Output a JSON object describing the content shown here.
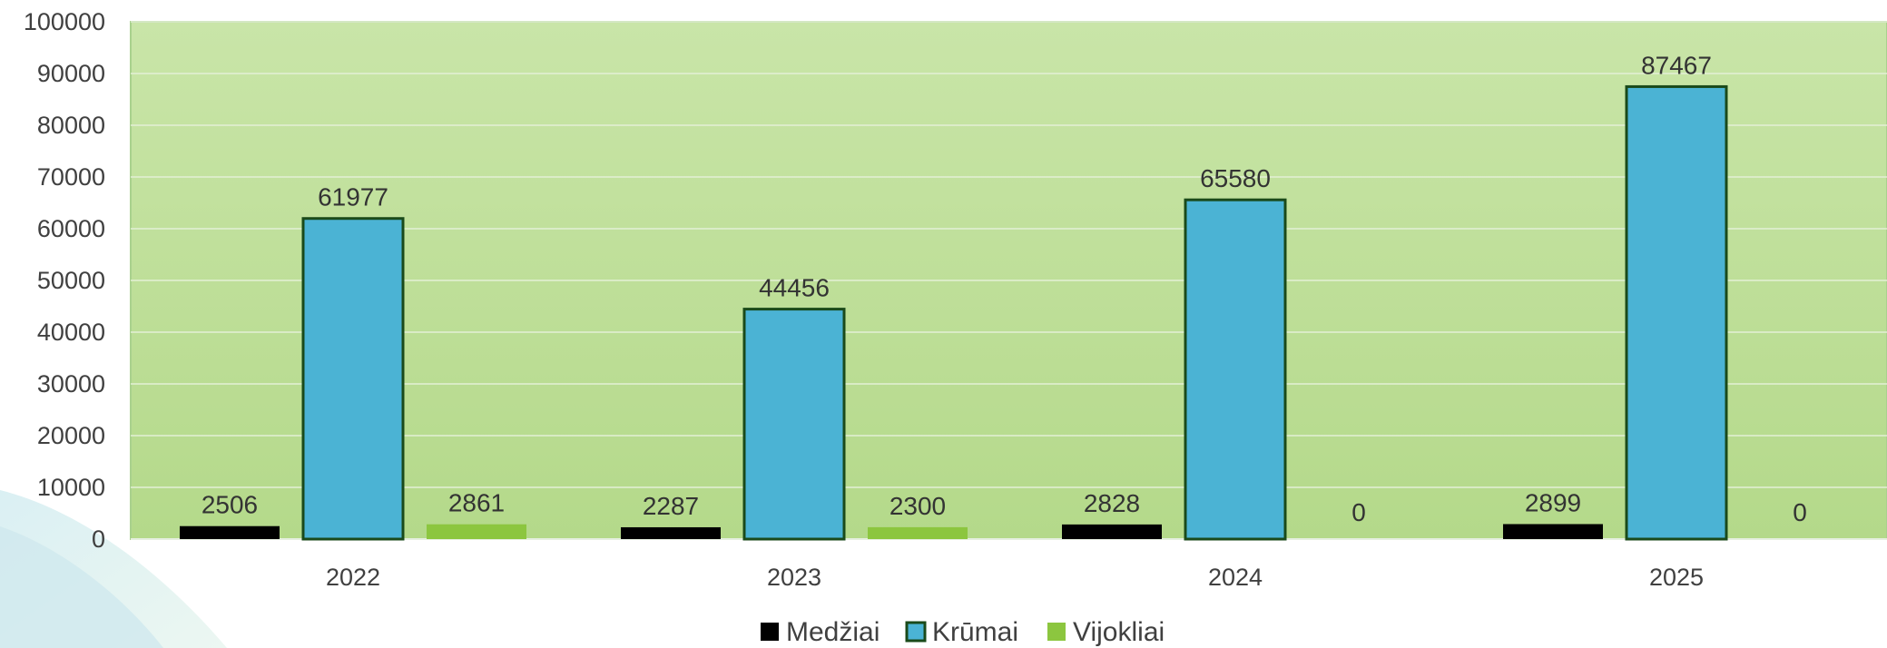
{
  "chart_data": {
    "type": "bar",
    "categories": [
      "2022",
      "2023",
      "2024",
      "2025"
    ],
    "series": [
      {
        "name": "Medžiai",
        "values": [
          2506,
          2287,
          2828,
          2899
        ],
        "color": "#000000"
      },
      {
        "name": "Krūmai",
        "values": [
          61977,
          44456,
          65580,
          87467
        ],
        "color": "#4bb3d4"
      },
      {
        "name": "Vijokliai",
        "values": [
          2861,
          2300,
          0,
          0
        ],
        "color": "#8cc63f"
      }
    ],
    "yticks": [
      "0",
      "10000",
      "20000",
      "30000",
      "40000",
      "50000",
      "60000",
      "70000",
      "80000",
      "90000",
      "100000"
    ],
    "ylim": [
      0,
      100000
    ],
    "title": "",
    "xlabel": "",
    "ylabel": "",
    "grid": true,
    "legend_position": "bottom-center",
    "plot_background": "#c2e0a0",
    "bar_outline": "#1a4a1a"
  }
}
